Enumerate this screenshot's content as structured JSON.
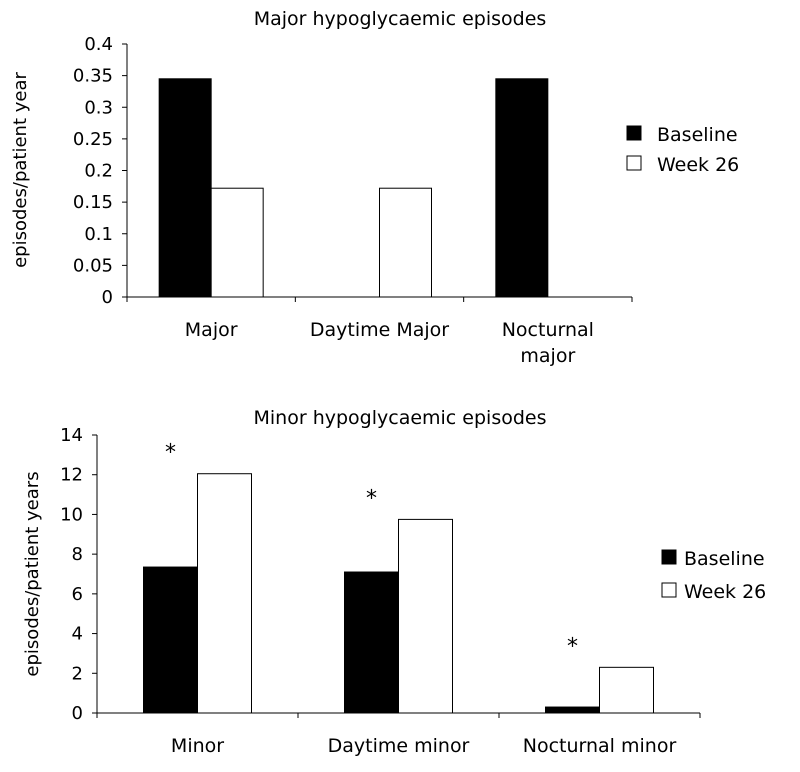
{
  "chart_data": [
    {
      "type": "bar",
      "title": "Major hypoglycaemic episodes",
      "ylabel": "episodes/patient year",
      "xlabel": "",
      "categories": [
        [
          "Major"
        ],
        [
          "Daytime Major"
        ],
        [
          "Nocturnal",
          "major"
        ]
      ],
      "ylim": [
        0,
        0.4
      ],
      "yticks": [
        "0",
        "0.05",
        "0.1",
        "0.15",
        "0.2",
        "0.25",
        "0.3",
        "0.35",
        "0.4"
      ],
      "series": [
        {
          "name": "Baseline",
          "color": "#000000",
          "values": [
            0.345,
            0,
            0.345
          ]
        },
        {
          "name": "Week 26",
          "color": "#ffffff",
          "values": [
            0.172,
            0.172,
            0
          ]
        }
      ],
      "annotations": [],
      "legend": "right",
      "grid": false
    },
    {
      "type": "bar",
      "title": "Minor hypoglycaemic episodes",
      "ylabel": "episodes/patient years",
      "xlabel": "",
      "categories": [
        [
          "Minor"
        ],
        [
          "Daytime minor"
        ],
        [
          "Nocturnal minor"
        ]
      ],
      "ylim": [
        0,
        14
      ],
      "yticks": [
        "0",
        "2",
        "4",
        "6",
        "8",
        "10",
        "12",
        "14"
      ],
      "series": [
        {
          "name": "Baseline",
          "color": "#000000",
          "values": [
            7.35,
            7.1,
            0.3
          ]
        },
        {
          "name": "Week 26",
          "color": "#ffffff",
          "values": [
            12.05,
            9.75,
            2.3
          ]
        }
      ],
      "annotations": [
        "*",
        "*",
        "*"
      ],
      "legend": "right",
      "grid": false
    }
  ]
}
